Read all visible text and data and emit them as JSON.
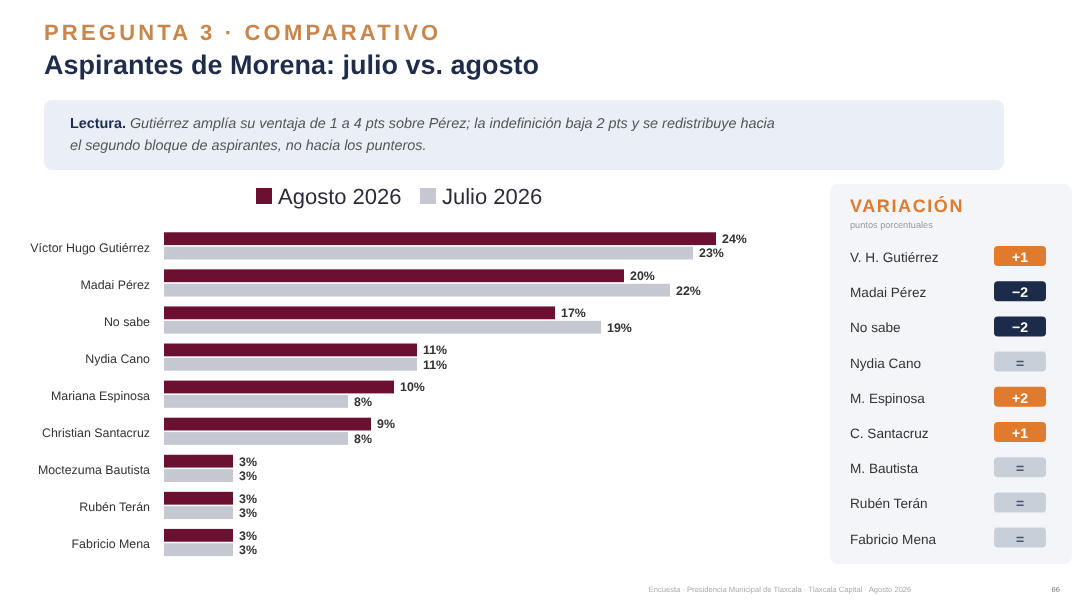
{
  "chart_data": {
    "type": "bar",
    "orientation": "horizontal",
    "subtitle": "PREGUNTA 3 · COMPARATIVO",
    "title": "Aspirantes de Morena: julio vs. agosto",
    "categories": [
      "Víctor Hugo Gutiérrez",
      "Madai Pérez",
      "No sabe",
      "Nydia Cano",
      "Mariana Espinosa",
      "Christian Santacruz",
      "Moctezuma Bautista",
      "Rubén Terán",
      "Fabricio Mena"
    ],
    "series": [
      {
        "name": "Agosto 2026",
        "color": "#6b1030",
        "values": [
          24,
          20,
          17,
          11,
          10,
          9,
          3,
          3,
          3
        ],
        "value_labels": [
          "24%",
          "20%",
          "17%",
          "11%",
          "10%",
          "9%",
          "3%",
          "3%",
          "3%"
        ]
      },
      {
        "name": "Julio 2026",
        "color": "#c5c8d0",
        "values": [
          23,
          22,
          19,
          11,
          8,
          8,
          3,
          3,
          3
        ],
        "value_labels": [
          "23%",
          "22%",
          "19%",
          "11%",
          "8%",
          "8%",
          "3%",
          "3%",
          "3%"
        ]
      }
    ],
    "legend": "top",
    "annotations": [
      "Lectura.",
      "Gutiérrez amplía su ventaja de 1 a 4 pts sobre Pérez; la indefinición baja 2 pts y se redistribuye hacia el segundo bloque de aspirantes, no hacia los punteros.",
      "VARIACIÓN",
      "puntos porcentuales",
      "V. H. Gutiérrez",
      "Madai Pérez",
      "No sabe",
      "Nydia Cano",
      "M. Espinosa",
      "C. Santacruz",
      "M. Bautista",
      "Rubén Terán",
      "Fabricio Mena",
      "+1",
      "−2",
      "−2",
      "=",
      "+2",
      "+1",
      "=",
      "=",
      "=",
      "Encuesta · Presidencia Municipal de Tlaxcala · Tlaxcala Capital · Agosto 2026",
      "66"
    ]
  }
}
